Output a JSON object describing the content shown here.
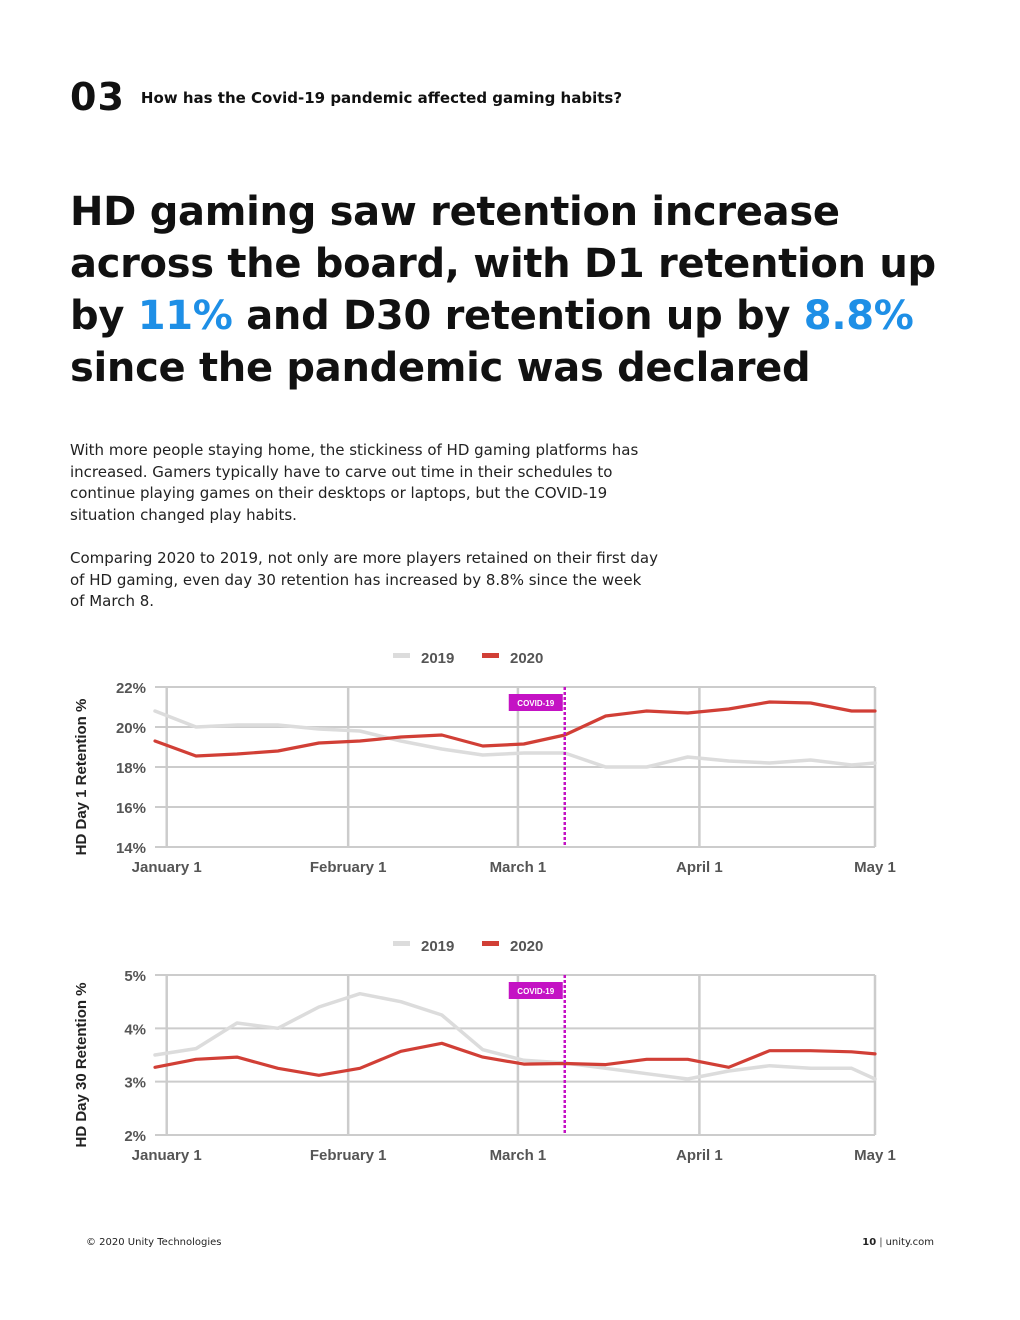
{
  "section": {
    "number": "03",
    "title": "How has the Covid-19 pandemic affected gaming habits?"
  },
  "headline": {
    "part1": "HD gaming saw retention increase across the board, with D1 retention up by ",
    "accent1": "11%",
    "part2": " and D30 retention up by ",
    "accent2": "8.8%",
    "part3": " since the pandemic was declared"
  },
  "body": {
    "paragraph1": "With more people staying home, the stickiness of HD gaming platforms has increased. Gamers typically have to carve out time in their schedules to continue playing games on their desktops or laptops, but the COVID-19 situation changed play habits.",
    "paragraph2": "Comparing 2020 to 2019, not only are more players retained on their first day of HD gaming, even day 30 retention has increased by 8.8% since the week of March 8."
  },
  "colors": {
    "accent": "#1e8fe6",
    "series2019": "#dcdcdc",
    "series2020": "#d13f36",
    "covidMarker": "#c412c4",
    "grid": "#cccccc"
  },
  "chart_data": [
    {
      "type": "line",
      "title": "",
      "ylabel": "HD Day 1 Retention %",
      "xlabel": "",
      "ylim": [
        14,
        22
      ],
      "xlim": [
        -2,
        121
      ],
      "yticks": [
        14,
        16,
        18,
        20,
        22
      ],
      "ytick_labels": [
        "14%",
        "16%",
        "18%",
        "20%",
        "22%"
      ],
      "xticks": [
        0,
        31,
        60,
        91,
        121
      ],
      "xtick_labels": [
        "January 1",
        "February 1",
        "March 1",
        "April 1",
        "May 1"
      ],
      "legend": [
        "2019",
        "2020"
      ],
      "legend_position": "top-center",
      "annotation": {
        "label": "COVID-19",
        "x": 68
      },
      "series": [
        {
          "name": "2019",
          "x": [
            -2,
            5,
            12,
            19,
            26,
            33,
            40,
            47,
            54,
            61,
            68,
            75,
            82,
            89,
            96,
            103,
            110,
            117,
            121
          ],
          "values": [
            20.8,
            20.0,
            20.1,
            20.1,
            19.9,
            19.8,
            19.3,
            18.9,
            18.6,
            18.7,
            18.7,
            18.0,
            18.0,
            18.5,
            18.3,
            18.2,
            18.35,
            18.1,
            18.2
          ]
        },
        {
          "name": "2020",
          "x": [
            -2,
            5,
            12,
            19,
            26,
            33,
            40,
            47,
            54,
            61,
            68,
            75,
            82,
            89,
            96,
            103,
            110,
            117,
            121
          ],
          "values": [
            19.3,
            18.55,
            18.65,
            18.8,
            19.2,
            19.3,
            19.5,
            19.6,
            19.05,
            19.15,
            19.6,
            20.55,
            20.8,
            20.7,
            20.9,
            21.25,
            21.2,
            20.8,
            20.8
          ]
        }
      ]
    },
    {
      "type": "line",
      "title": "",
      "ylabel": "HD Day 30 Retention %",
      "xlabel": "",
      "ylim": [
        2,
        5
      ],
      "xlim": [
        -2,
        121
      ],
      "yticks": [
        2,
        3,
        4,
        5
      ],
      "ytick_labels": [
        "2%",
        "3%",
        "4%",
        "5%"
      ],
      "xticks": [
        0,
        31,
        60,
        91,
        121
      ],
      "xtick_labels": [
        "January 1",
        "February 1",
        "March 1",
        "April 1",
        "May 1"
      ],
      "legend": [
        "2019",
        "2020"
      ],
      "legend_position": "top-center",
      "annotation": {
        "label": "COVID-19",
        "x": 68
      },
      "series": [
        {
          "name": "2019",
          "x": [
            -2,
            5,
            12,
            19,
            26,
            33,
            40,
            47,
            54,
            61,
            68,
            75,
            82,
            89,
            96,
            103,
            110,
            117,
            121
          ],
          "values": [
            3.5,
            3.62,
            4.1,
            4.0,
            4.4,
            4.65,
            4.5,
            4.25,
            3.6,
            3.4,
            3.35,
            3.25,
            3.15,
            3.05,
            3.2,
            3.3,
            3.25,
            3.25,
            3.05
          ]
        },
        {
          "name": "2020",
          "x": [
            -2,
            5,
            12,
            19,
            26,
            33,
            40,
            47,
            54,
            61,
            68,
            75,
            82,
            89,
            96,
            103,
            110,
            117,
            121
          ],
          "values": [
            3.27,
            3.42,
            3.46,
            3.25,
            3.12,
            3.25,
            3.57,
            3.72,
            3.46,
            3.33,
            3.34,
            3.32,
            3.42,
            3.42,
            3.27,
            3.58,
            3.58,
            3.56,
            3.52
          ]
        }
      ]
    }
  ],
  "footer": {
    "copyright": "© 2020 Unity Technologies",
    "page": "10",
    "site": "unity.com"
  }
}
